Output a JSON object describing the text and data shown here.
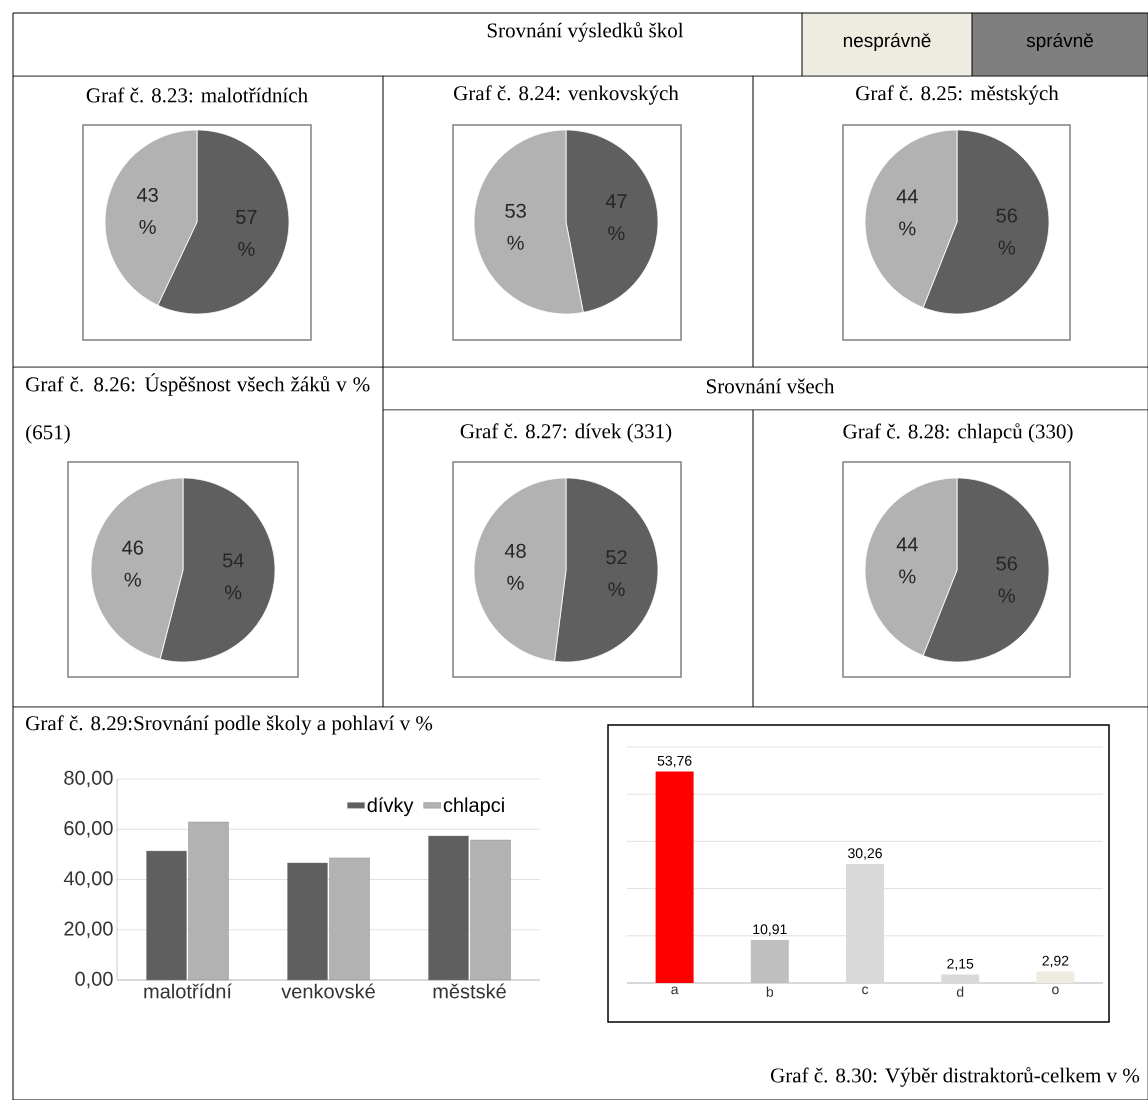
{
  "chart_data": [
    {
      "type": "other",
      "title": "Srovnání výsledků škol",
      "categories": [
        "nesprávně",
        "správně"
      ],
      "colors": [
        "#eeece1",
        "#7f7f7f"
      ],
      "annotations": [
        "Srovnání všech"
      ]
    },
    {
      "type": "pie",
      "title": "Graf č. 8.23: malotřídních",
      "categories": [
        null,
        null
      ],
      "values": [
        57,
        43
      ],
      "colors": [
        "#5f5f5f",
        "#b2b2b2"
      ],
      "value_labels": [
        "57 %",
        "43 %"
      ]
    },
    {
      "type": "pie",
      "title": "Graf č. 8.24: venkovských",
      "categories": [
        null,
        null
      ],
      "values": [
        47,
        53
      ],
      "colors": [
        "#5f5f5f",
        "#b2b2b2"
      ],
      "value_labels": [
        "47 %",
        "53 %"
      ]
    },
    {
      "type": "pie",
      "title": "Graf č. 8.25: městských",
      "categories": [
        null,
        null
      ],
      "values": [
        56,
        44
      ],
      "colors": [
        "#5f5f5f",
        "#b2b2b2"
      ],
      "value_labels": [
        "56 %",
        "44 %"
      ]
    },
    {
      "type": "pie",
      "title": "Graf č. 8.26: Úspěšnost všech žáků v % (651)",
      "categories": [
        null,
        null
      ],
      "values": [
        54,
        46
      ],
      "colors": [
        "#5f5f5f",
        "#b2b2b2"
      ],
      "value_labels": [
        "54 %",
        "46 %"
      ]
    },
    {
      "type": "pie",
      "title": "Graf č. 8.27: dívek (331)",
      "categories": [
        null,
        null
      ],
      "values": [
        52,
        48
      ],
      "colors": [
        "#5f5f5f",
        "#b2b2b2"
      ],
      "value_labels": [
        "52 %",
        "48 %"
      ]
    },
    {
      "type": "pie",
      "title": "Graf č. 8.28: chlapců (330)",
      "categories": [
        null,
        null
      ],
      "values": [
        56,
        44
      ],
      "colors": [
        "#5f5f5f",
        "#b2b2b2"
      ],
      "value_labels": [
        "56 %",
        "44 %"
      ]
    },
    {
      "type": "bar",
      "title": "Graf č. 8.29:Srovnání podle školy a pohlaví v %",
      "categories": [
        "malotřídní",
        "venkovské",
        "městské"
      ],
      "series": [
        {
          "name": "dívky",
          "color": "#5f5f5f",
          "values": [
            51.3,
            46.6,
            57.3
          ]
        },
        {
          "name": "chlapci",
          "color": "#b2b2b2",
          "values": [
            62.9,
            48.6,
            55.7
          ]
        }
      ],
      "ylim": [
        0,
        80
      ],
      "yticks": [
        {
          "value": 0,
          "label": "0,00"
        },
        {
          "value": 20,
          "label": "20,00"
        },
        {
          "value": 40,
          "label": "40,00"
        },
        {
          "value": 60,
          "label": "60,00"
        },
        {
          "value": 80,
          "label": "80,00"
        }
      ],
      "grid": "y",
      "legend": "top right"
    },
    {
      "type": "bar",
      "title": "Graf č. 8.30: Výběr distraktorů-celkem v %",
      "categories": [
        "a",
        "b",
        "c",
        "d",
        "o"
      ],
      "values": [
        53.76,
        10.91,
        30.26,
        2.15,
        2.92
      ],
      "colors": [
        "#ff0000",
        "#bfbfbf",
        "#d9d9d9",
        "#d9d9d9",
        "#eeece1"
      ],
      "value_labels": [
        "53,76",
        "10,91",
        "30,26",
        "2,15",
        "2,92"
      ],
      "ylim": [
        0,
        60
      ],
      "yticks": [
        {
          "value": 0,
          "label": null
        },
        {
          "value": 12,
          "label": null
        },
        {
          "value": 24,
          "label": null
        },
        {
          "value": 36,
          "label": null
        },
        {
          "value": 48,
          "label": null
        },
        {
          "value": 60,
          "label": null
        }
      ],
      "grid": "y",
      "tick_labels": "x"
    }
  ]
}
